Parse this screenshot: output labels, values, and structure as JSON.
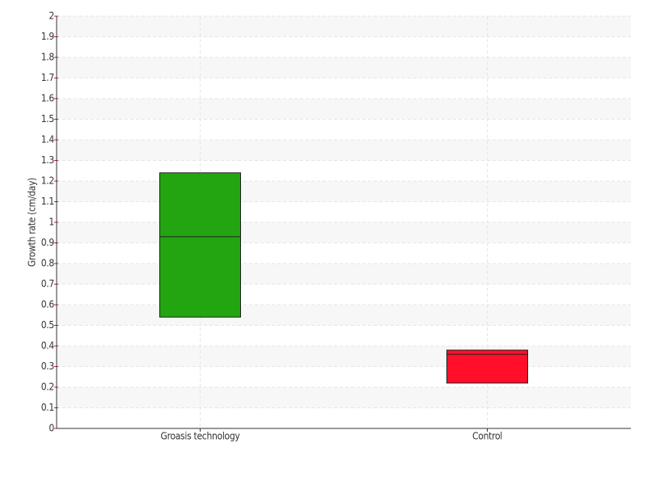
{
  "chart_data": {
    "type": "box",
    "y_label": "Growth rate (cm/day)",
    "categories": [
      "Groasis technology",
      "Control"
    ],
    "q1": [
      0.54,
      0.22
    ],
    "median": [
      0.93,
      0.36
    ],
    "q3": [
      1.24,
      0.38
    ],
    "colors": [
      "#22a511",
      "#ff0f2a"
    ],
    "ylim": [
      0,
      2
    ],
    "yticks": [
      0,
      0.1,
      0.2,
      0.3,
      0.4,
      0.5,
      0.6,
      0.7,
      0.8,
      0.9,
      1,
      1.1,
      1.2,
      1.3,
      1.4,
      1.5,
      1.6,
      1.7,
      1.8,
      1.9,
      2
    ],
    "grid": true
  }
}
